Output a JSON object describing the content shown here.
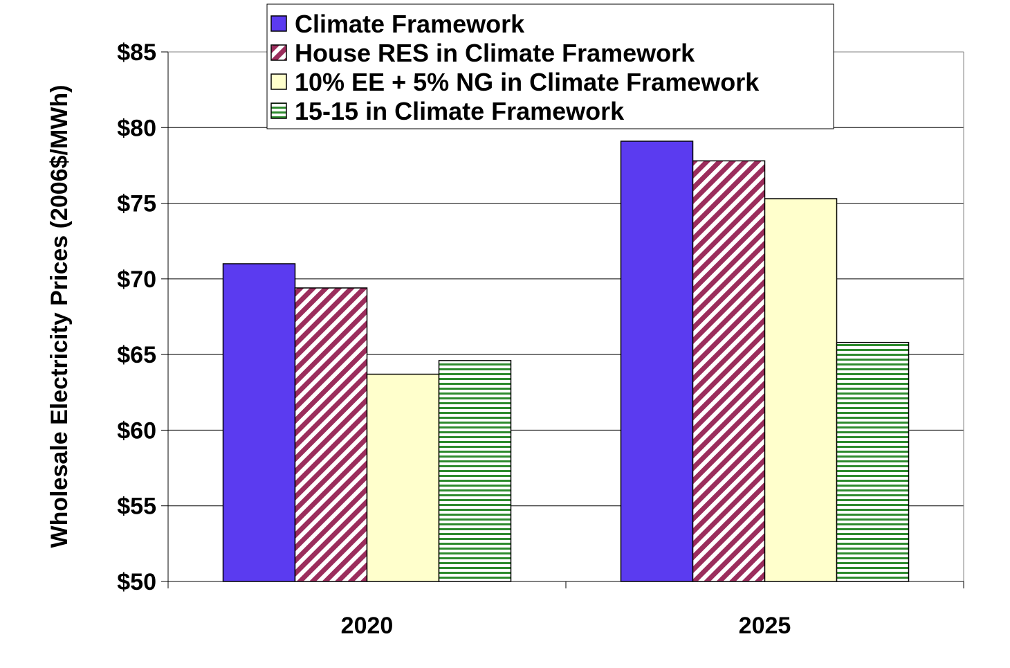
{
  "chart_data": {
    "type": "bar",
    "categories": [
      "2020",
      "2025"
    ],
    "series": [
      {
        "name": "Climate Framework",
        "values": [
          71.0,
          79.1
        ],
        "color": "#5b3bf0",
        "pattern": "solid"
      },
      {
        "name": "House RES in Climate Framework",
        "values": [
          69.4,
          77.8
        ],
        "color": "#9b2d5c",
        "pattern": "diagonal-stripes"
      },
      {
        "name": "10% EE + 5% NG in Climate Framework",
        "values": [
          63.7,
          75.3
        ],
        "color": "#ffffcc",
        "pattern": "solid"
      },
      {
        "name": "15-15 in Climate Framework",
        "values": [
          64.6,
          65.8
        ],
        "color": "#2e8b2e",
        "pattern": "horizontal-stripes"
      }
    ],
    "ylabel": "Wholesale Electricity Prices (2006$/MWh)",
    "ylim": [
      50,
      85
    ],
    "yticks": [
      50,
      55,
      60,
      65,
      70,
      75,
      80,
      85
    ],
    "ytick_labels": [
      "$50",
      "$55",
      "$60",
      "$65",
      "$70",
      "$75",
      "$80",
      "$85"
    ],
    "grid": true,
    "legend_position": "top-center"
  }
}
